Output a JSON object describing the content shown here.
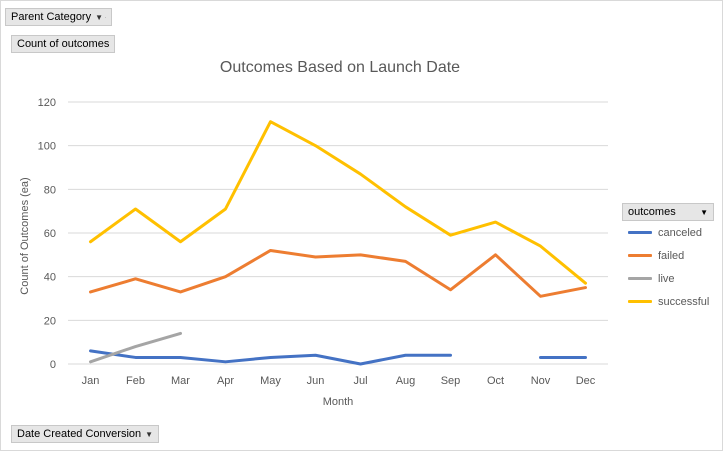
{
  "filters": {
    "parent_category": "Parent Category",
    "value_field": "Count of outcomes",
    "axis_field": "Date Created Conversion"
  },
  "legend": {
    "title": "outcomes"
  },
  "icons": {
    "filter": "funnel-filter-icon",
    "dropdown": "dropdown-arrow-icon"
  },
  "chart_data": {
    "type": "line",
    "title": "Outcomes Based on Launch Date",
    "xlabel": "Month",
    "ylabel": "Count of Outcomes (ea)",
    "ylim": [
      0,
      120
    ],
    "yticks": [
      0,
      20,
      40,
      60,
      80,
      100,
      120
    ],
    "grid": true,
    "legend_position": "right",
    "categories": [
      "Jan",
      "Feb",
      "Mar",
      "Apr",
      "May",
      "Jun",
      "Jul",
      "Aug",
      "Sep",
      "Oct",
      "Nov",
      "Dec"
    ],
    "series": [
      {
        "name": "canceled",
        "color": "#4472c4",
        "values": [
          6,
          3,
          3,
          1,
          3,
          4,
          0,
          4,
          4,
          null,
          3,
          3
        ]
      },
      {
        "name": "failed",
        "color": "#ed7d31",
        "values": [
          33,
          39,
          33,
          40,
          52,
          49,
          50,
          47,
          34,
          50,
          31,
          35
        ]
      },
      {
        "name": "live",
        "color": "#a5a5a5",
        "values": [
          1,
          8,
          14,
          null,
          null,
          null,
          null,
          null,
          null,
          null,
          null,
          null
        ]
      },
      {
        "name": "successful",
        "color": "#ffc000",
        "values": [
          56,
          71,
          56,
          71,
          111,
          100,
          87,
          72,
          59,
          65,
          54,
          37
        ]
      }
    ]
  }
}
